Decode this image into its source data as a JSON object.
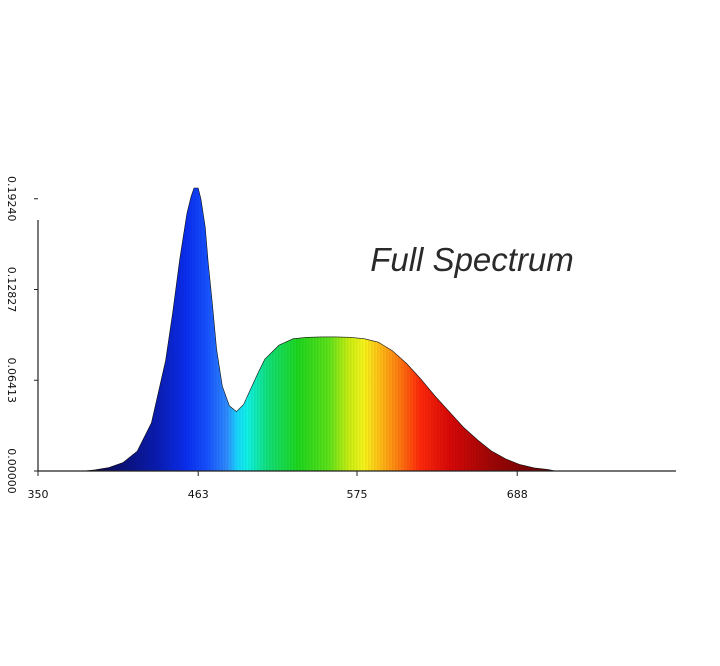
{
  "chart_data": {
    "type": "area",
    "title": "Full Spectrum",
    "xlabel": "",
    "ylabel": "",
    "x_ticks": [
      "350",
      "463",
      "575",
      "688"
    ],
    "x_tick_values": [
      350,
      463,
      575,
      688
    ],
    "y_ticks": [
      "0.00000",
      "0.06413",
      "0.12827",
      "0.19240"
    ],
    "y_tick_values": [
      0.0,
      0.06413,
      0.12827,
      0.1924
    ],
    "xlim": [
      350,
      800
    ],
    "ylim": [
      0,
      0.2
    ],
    "grid": false,
    "series": [
      {
        "x": [
          382,
          390,
          400,
          410,
          420,
          430,
          440,
          445,
          450,
          455,
          458,
          460,
          462,
          463,
          465,
          468,
          470,
          473,
          476,
          480,
          485,
          490,
          495,
          500,
          505,
          510,
          520,
          530,
          540,
          550,
          560,
          570,
          580,
          590,
          600,
          610,
          620,
          630,
          640,
          650,
          660,
          670,
          680,
          690,
          700,
          710,
          715
        ],
        "y": [
          0.0,
          0.0008,
          0.0025,
          0.006,
          0.014,
          0.034,
          0.078,
          0.112,
          0.15,
          0.182,
          0.194,
          0.2,
          0.2,
          0.2,
          0.192,
          0.172,
          0.148,
          0.118,
          0.086,
          0.06,
          0.046,
          0.042,
          0.047,
          0.058,
          0.069,
          0.079,
          0.089,
          0.0935,
          0.0945,
          0.0948,
          0.0948,
          0.0945,
          0.0935,
          0.091,
          0.085,
          0.076,
          0.065,
          0.053,
          0.042,
          0.031,
          0.022,
          0.014,
          0.0085,
          0.0045,
          0.0022,
          0.001,
          0.0
        ]
      }
    ]
  }
}
